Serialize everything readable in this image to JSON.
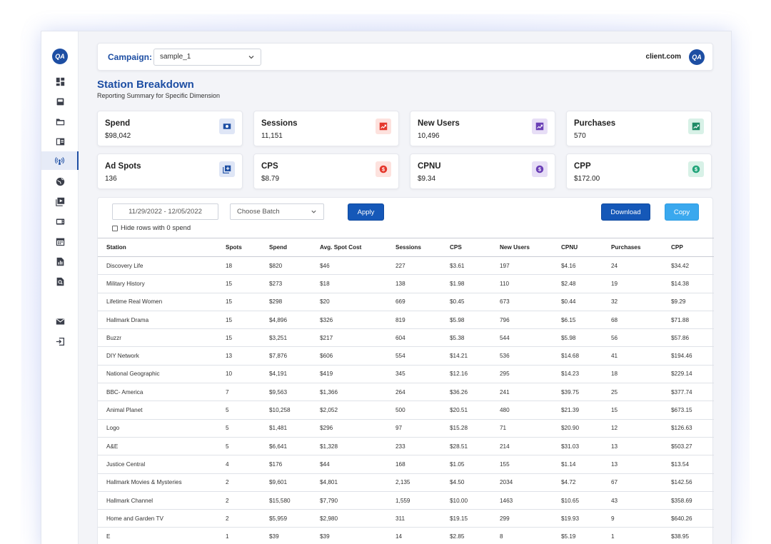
{
  "sidebar": {
    "logo_text": "QA",
    "items": [
      {
        "icon": "dashboard-icon"
      },
      {
        "icon": "inbox-icon"
      },
      {
        "icon": "folder-icon"
      },
      {
        "icon": "layout-icon"
      },
      {
        "icon": "broadcast-icon",
        "active": true
      },
      {
        "icon": "globe-icon"
      },
      {
        "icon": "video-icon"
      },
      {
        "icon": "tv-icon"
      },
      {
        "icon": "calendar-icon"
      },
      {
        "icon": "report-icon"
      },
      {
        "icon": "search-document-icon"
      },
      {
        "icon": "mail-icon"
      },
      {
        "icon": "logout-icon"
      }
    ]
  },
  "header": {
    "campaign_label": "Campaign:",
    "campaign_value": "sample_1",
    "client": "client.com",
    "client_logo_text": "QA"
  },
  "page": {
    "title": "Station Breakdown",
    "subtitle": "Reporting Summary for Specific Dimension"
  },
  "cards": [
    {
      "label": "Spend",
      "value": "$98,042",
      "icon": "money-icon",
      "color": "#1d4ea3",
      "bg": "#dfe6f6"
    },
    {
      "label": "Sessions",
      "value": "11,151",
      "icon": "trend-icon",
      "color": "#e5382c",
      "bg": "#fde2de"
    },
    {
      "label": "New Users",
      "value": "10,496",
      "icon": "trend-icon",
      "color": "#6b3fb6",
      "bg": "#e7def6"
    },
    {
      "label": "Purchases",
      "value": "570",
      "icon": "trend-icon",
      "color": "#1e8a66",
      "bg": "#d8f1e7"
    },
    {
      "label": "Ad Spots",
      "value": "136",
      "icon": "add-library-icon",
      "color": "#1d4ea3",
      "bg": "#dfe6f6"
    },
    {
      "label": "CPS",
      "value": "$8.79",
      "icon": "dollar-icon",
      "color": "#e5382c",
      "bg": "#fde2de"
    },
    {
      "label": "CPNU",
      "value": "$9.34",
      "icon": "dollar-icon",
      "color": "#6b3fb6",
      "bg": "#e7def6"
    },
    {
      "label": "CPP",
      "value": "$172.00",
      "icon": "dollar-icon",
      "color": "#22a57a",
      "bg": "#d8f1e7"
    }
  ],
  "filters": {
    "date_range": "11/29/2022 - 12/05/2022",
    "batch_placeholder": "Choose Batch",
    "apply_label": "Apply",
    "download_label": "Download",
    "copy_label": "Copy",
    "hide_rows_label": "Hide rows with 0 spend"
  },
  "table": {
    "columns": [
      "Station",
      "Spots",
      "Spend",
      "Avg. Spot Cost",
      "Sessions",
      "CPS",
      "New Users",
      "CPNU",
      "Purchases",
      "CPP"
    ],
    "rows": [
      [
        "Discovery Life",
        "18",
        "$820",
        "$46",
        "227",
        "$3.61",
        "197",
        "$4.16",
        "24",
        "$34.42"
      ],
      [
        "Military History",
        "15",
        "$273",
        "$18",
        "138",
        "$1.98",
        "110",
        "$2.48",
        "19",
        "$14.38"
      ],
      [
        "Lifetime Real Women",
        "15",
        "$298",
        "$20",
        "669",
        "$0.45",
        "673",
        "$0.44",
        "32",
        "$9.29"
      ],
      [
        "Hallmark Drama",
        "15",
        "$4,896",
        "$326",
        "819",
        "$5.98",
        "796",
        "$6.15",
        "68",
        "$71.88"
      ],
      [
        "Buzzr",
        "15",
        "$3,251",
        "$217",
        "604",
        "$5.38",
        "544",
        "$5.98",
        "56",
        "$57.86"
      ],
      [
        "DIY Network",
        "13",
        "$7,876",
        "$606",
        "554",
        "$14.21",
        "536",
        "$14.68",
        "41",
        "$194.46"
      ],
      [
        "National Geographic",
        "10",
        "$4,191",
        "$419",
        "345",
        "$12.16",
        "295",
        "$14.23",
        "18",
        "$229.14"
      ],
      [
        "BBC- America",
        "7",
        "$9,563",
        "$1,366",
        "264",
        "$36.26",
        "241",
        "$39.75",
        "25",
        "$377.74"
      ],
      [
        "Animal Planet",
        "5",
        "$10,258",
        "$2,052",
        "500",
        "$20.51",
        "480",
        "$21.39",
        "15",
        "$673.15"
      ],
      [
        "Logo",
        "5",
        "$1,481",
        "$296",
        "97",
        "$15.28",
        "71",
        "$20.90",
        "12",
        "$126.63"
      ],
      [
        "A&E",
        "5",
        "$6,641",
        "$1,328",
        "233",
        "$28.51",
        "214",
        "$31.03",
        "13",
        "$503.27"
      ],
      [
        "Justice Central",
        "4",
        "$176",
        "$44",
        "168",
        "$1.05",
        "155",
        "$1.14",
        "13",
        "$13.54"
      ],
      [
        "Hallmark Movies & Mysteries",
        "2",
        "$9,601",
        "$4,801",
        "2,135",
        "$4.50",
        "2034",
        "$4.72",
        "67",
        "$142.56"
      ],
      [
        "Hallmark Channel",
        "2",
        "$15,580",
        "$7,790",
        "1,559",
        "$10.00",
        "1463",
        "$10.65",
        "43",
        "$358.69"
      ],
      [
        "Home and Garden TV",
        "2",
        "$5,959",
        "$2,980",
        "311",
        "$19.15",
        "299",
        "$19.93",
        "9",
        "$640.26"
      ],
      [
        "E",
        "1",
        "$39",
        "$39",
        "14",
        "$2.85",
        "8",
        "$5.19",
        "1",
        "$38.95"
      ]
    ]
  }
}
